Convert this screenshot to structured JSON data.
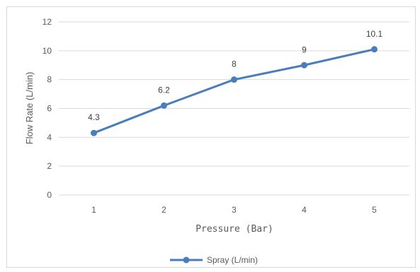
{
  "chart_data": {
    "type": "line",
    "x": [
      "1",
      "2",
      "3",
      "4",
      "5"
    ],
    "series": [
      {
        "name": "Spray (L/min)",
        "values": [
          4.3,
          6.2,
          8,
          9,
          10.1
        ],
        "labels": [
          "4.3",
          "6.2",
          "8",
          "9",
          "10.1"
        ],
        "color": "#4a7ebb"
      }
    ],
    "title": "",
    "xlabel": "Pressure (Bar)",
    "ylabel": "Flow Rate (L/min)",
    "ylim": [
      0,
      12
    ],
    "yticks": [
      "0",
      "2",
      "4",
      "6",
      "8",
      "10",
      "12"
    ],
    "grid": true,
    "legend": "bottom"
  }
}
